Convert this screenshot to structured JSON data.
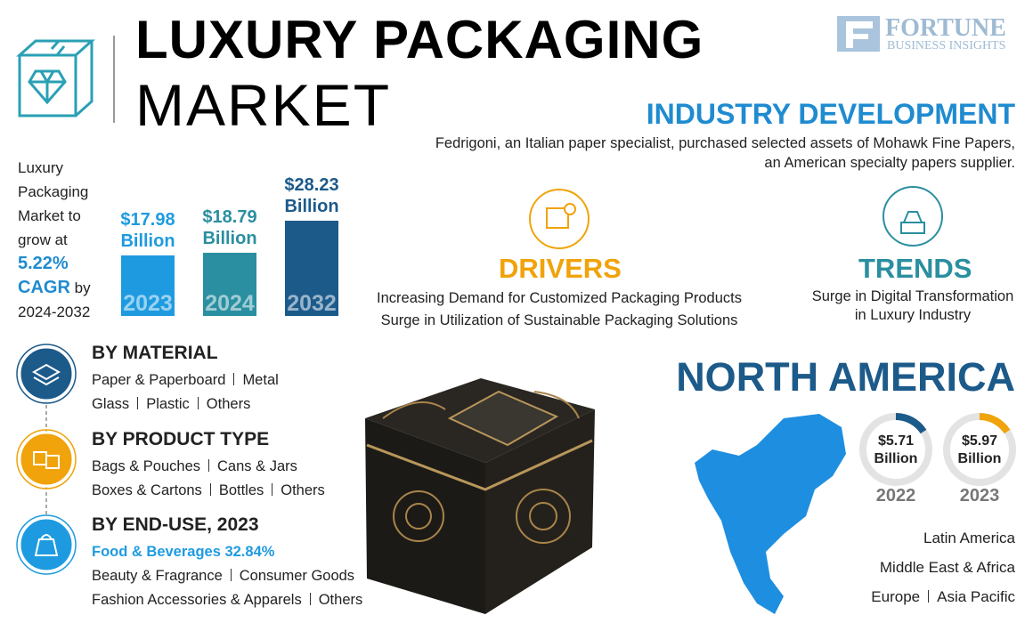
{
  "header": {
    "title_line1": "LUXURY PACKAGING",
    "title_line2": "MARKET",
    "brand": "FORTUNE",
    "brand_sub": "BUSINESS INSIGHTS"
  },
  "growth": {
    "lines": [
      "Luxury",
      "Packaging",
      "Market to",
      "grow at"
    ],
    "cagr": "5.22%",
    "cagr_label": "CAGR",
    "by": "by",
    "period": "2024-2032"
  },
  "market_size": {
    "categories": [
      "2023",
      "2024",
      "2032"
    ],
    "values": [
      17.98,
      18.79,
      28.23
    ],
    "value_labels": [
      "$17.98 Billion",
      "$18.79 Billion",
      "$28.23 Billion"
    ],
    "colors": [
      "#1e9be0",
      "#2a8fa0",
      "#1c5a8a"
    ]
  },
  "industry_development": {
    "title": "INDUSTRY DEVELOPMENT",
    "lines": [
      "Fedrigoni, an Italian paper specialist, purchased selected assets of Mohawk Fine Papers,",
      "an American specialty papers supplier."
    ]
  },
  "drivers": {
    "title": "DRIVERS",
    "items": [
      "Increasing Demand for Customized Packaging Products",
      "Surge in Utilization of Sustainable Packaging Solutions"
    ]
  },
  "trends": {
    "title": "TRENDS",
    "lines": [
      "Surge in Digital Transformation",
      "in Luxury Industry"
    ]
  },
  "segments": [
    {
      "title": "BY MATERIAL",
      "lines": [
        [
          "Paper & Paperboard",
          "Metal"
        ],
        [
          "Glass",
          "Plastic",
          "Others"
        ]
      ]
    },
    {
      "title": "BY PRODUCT TYPE",
      "lines": [
        [
          "Bags & Pouches",
          "Cans & Jars"
        ],
        [
          "Boxes & Cartons",
          "Bottles",
          "Others"
        ]
      ]
    },
    {
      "title": "BY END-USE, 2023",
      "highlight": "Food & Beverages 32.84%",
      "lines": [
        [
          "Beauty & Fragrance",
          "Consumer Goods"
        ],
        [
          "Fashion Accessories & Apparels",
          "Others"
        ]
      ]
    }
  ],
  "north_america": {
    "title": "NORTH AMERICA",
    "rings": [
      {
        "label": "$5.71 Billion",
        "year": "2022"
      },
      {
        "label": "$5.97 Billion",
        "year": "2023"
      }
    ]
  },
  "regions": [
    [
      "Latin America"
    ],
    [
      "Middle East & Africa"
    ],
    [
      "Europe",
      "Asia Pacific"
    ]
  ]
}
